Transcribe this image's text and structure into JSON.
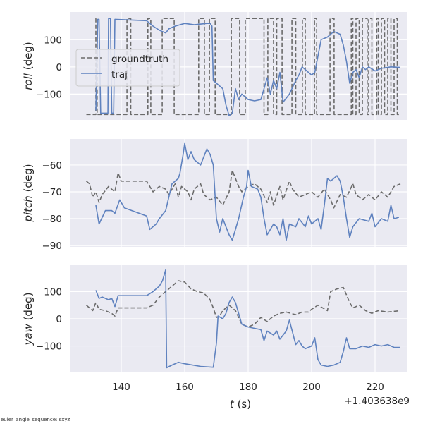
{
  "chart_data": {
    "type": "line",
    "footnote": "euler_angle_sequence: sxyz",
    "xlabel_var": "t",
    "xlabel_unit": " (s)",
    "x_offset_label": "+1.403638e9",
    "xlim": [
      124,
      230
    ],
    "xticks": [
      140,
      160,
      180,
      200,
      220
    ],
    "xtick_labels": [
      "140",
      "160",
      "180",
      "200",
      "220"
    ],
    "colors": {
      "groundtruth": "#6b6b6b",
      "traj": "#5f82bf",
      "background": "#eaeaf2",
      "grid": "#ffffff"
    },
    "legend": {
      "placement": "center-left of top panel",
      "entries": [
        "groundtruth",
        "traj"
      ]
    },
    "panels": [
      {
        "name": "roll",
        "ylabel_var": "roll",
        "ylabel_unit": " (deg)",
        "ylim": [
          -195,
          202
        ],
        "yticks": [
          100,
          0,
          -100
        ],
        "ytick_labels": [
          "100",
          "0",
          "−100"
        ],
        "series": [
          {
            "name": "groundtruth",
            "x": [
              129,
              132,
              132,
              132.4,
              132.4,
              141.8,
              141.8,
              143,
              143,
              148.4,
              148.4,
              149.3,
              149.3,
              152.9,
              152.9,
              156.7,
              156.7,
              164.4,
              164.4,
              166.2,
              166.2,
              167.8,
              167.8,
              169.6,
              169.6,
              174.7,
              174.7,
              177.3,
              177.3,
              179.1,
              179.1,
              185,
              185,
              186.2,
              186.2,
              188,
              188,
              189,
              189,
              190.7,
              190.7,
              193.8,
              193.8,
              195,
              195,
              197.1,
              197.1,
              198,
              198,
              200.9,
              200.9,
              201.6,
              201.6,
              205.8,
              205.8,
              207.1,
              207.1,
              212.5,
              212.5,
              213,
              213,
              214,
              214,
              215,
              215,
              216,
              216,
              217.5,
              217.5,
              218,
              218,
              219,
              219,
              220.5,
              220.5,
              221,
              221,
              222,
              222,
              223,
              223,
              224,
              224,
              225,
              225,
              226,
              226,
              227,
              227,
              227.5
            ],
            "y": [
              -175,
              -175,
              178,
              178,
              -175,
              -175,
              178,
              178,
              -175,
              -175,
              178,
              178,
              -175,
              -175,
              178,
              178,
              -175,
              -175,
              178,
              178,
              -175,
              -175,
              178,
              178,
              -175,
              -175,
              178,
              178,
              -175,
              -175,
              178,
              178,
              -175,
              -175,
              178,
              178,
              -175,
              -175,
              178,
              178,
              -175,
              -175,
              178,
              178,
              -175,
              -175,
              178,
              178,
              -175,
              -175,
              178,
              178,
              -175,
              -175,
              178,
              178,
              -175,
              -175,
              178,
              178,
              -175,
              -175,
              178,
              178,
              -175,
              -175,
              178,
              178,
              -175,
              -175,
              178,
              178,
              -175,
              -175,
              178,
              178,
              -175,
              -175,
              178,
              178,
              -175,
              -175,
              178,
              178,
              -175,
              -175,
              178,
              178,
              -175,
              -175
            ]
          },
          {
            "name": "traj",
            "x": [
              132,
              132.6,
              133,
              133.5,
              135,
              135.8,
              136,
              136.6,
              137,
              137.6,
              138,
              148,
              150,
              152,
              154,
              155,
              157,
              160,
              163,
              167,
              168,
              168.6,
              169,
              170,
              172,
              173,
              174,
              175,
              176,
              177,
              178,
              179,
              180,
              182,
              184,
              185,
              186,
              187,
              188,
              189,
              190,
              191,
              193,
              195,
              196,
              197,
              198,
              200,
              201,
              203,
              205,
              207,
              209,
              210,
              211,
              212,
              213,
              214,
              215,
              216,
              217,
              218,
              220,
              222,
              225,
              228
            ],
            "y": [
              -160,
              175,
              175,
              -170,
              -170,
              -170,
              178,
              178,
              -170,
              -170,
              175,
              170,
              150,
              135,
              125,
              140,
              150,
              160,
              155,
              160,
              160,
              150,
              -50,
              -60,
              -80,
              -140,
              -180,
              -170,
              -80,
              -120,
              -100,
              -110,
              -120,
              -125,
              -120,
              -80,
              -40,
              -100,
              -50,
              -80,
              -20,
              -130,
              -100,
              -50,
              -30,
              0,
              -10,
              -30,
              -20,
              100,
              110,
              130,
              120,
              80,
              20,
              -60,
              -20,
              -10,
              -40,
              0,
              -10,
              0,
              -15,
              -5,
              0,
              -2
            ]
          }
        ]
      },
      {
        "name": "pitch",
        "ylabel_var": "pitch",
        "ylabel_unit": " (deg)",
        "ylim": [
          -90.5,
          -50.3
        ],
        "yticks": [
          -60,
          -70,
          -80,
          -90
        ],
        "ytick_labels": [
          "−60",
          "−70",
          "−80",
          "−90"
        ],
        "series": [
          {
            "name": "groundtruth",
            "x": [
              129,
              130,
              131,
              132,
              133,
              134,
              136,
              138,
              139,
              140,
              148,
              149,
              150,
              152,
              154,
              155,
              157,
              158,
              159,
              161,
              162,
              163,
              165,
              166,
              168,
              170,
              172,
              174,
              175,
              177,
              178,
              180,
              182,
              184,
              186,
              187,
              188,
              190,
              191,
              193,
              194,
              196,
              198,
              200,
              202,
              204,
              206,
              207,
              209,
              211,
              213,
              214,
              216,
              218,
              220,
              222,
              224,
              226,
              228
            ],
            "y": [
              -66,
              -67,
              -72,
              -70,
              -74,
              -71,
              -68,
              -70,
              -63,
              -66,
              -66,
              -68,
              -70,
              -68,
              -69,
              -71,
              -67,
              -72,
              -68,
              -70,
              -73,
              -69,
              -67,
              -71,
              -73,
              -72,
              -75,
              -70,
              -62,
              -68,
              -70,
              -68,
              -67,
              -69,
              -74,
              -70,
              -75,
              -68,
              -73,
              -66,
              -69,
              -72,
              -71,
              -70,
              -72,
              -69,
              -73,
              -76,
              -71,
              -72,
              -67,
              -71,
              -73,
              -71,
              -73,
              -70,
              -72,
              -68,
              -67
            ]
          },
          {
            "name": "traj",
            "x": [
              132,
              133,
              135,
              137,
              138,
              139.5,
              141,
              148,
              149,
              151,
              152,
              154,
              155,
              156,
              158,
              158.5,
              159.5,
              160,
              161,
              162,
              163,
              165,
              167,
              168,
              169,
              170,
              171,
              172,
              174,
              175,
              177,
              178.5,
              179.5,
              180,
              181,
              183,
              184,
              185,
              186,
              188,
              189,
              190,
              191,
              192,
              193,
              195,
              196,
              198,
              199,
              200,
              202,
              203,
              204,
              205,
              206,
              208,
              209,
              210,
              211,
              212,
              213,
              215,
              218,
              219,
              220,
              222,
              224,
              225,
              226,
              227.5
            ],
            "y": [
              -75,
              -82,
              -77,
              -77,
              -78,
              -73,
              -76,
              -79,
              -84,
              -82,
              -80,
              -77,
              -72,
              -67,
              -65,
              -63,
              -56,
              -52,
              -58,
              -55,
              -58,
              -60,
              -54,
              -56,
              -60,
              -80,
              -85,
              -80,
              -86,
              -88,
              -80,
              -72,
              -68,
              -62,
              -68,
              -69,
              -72,
              -80,
              -86,
              -82,
              -83,
              -86,
              -80,
              -88,
              -82,
              -83,
              -80,
              -83,
              -79,
              -82,
              -80,
              -84,
              -75,
              -65,
              -66,
              -64,
              -66,
              -72,
              -80,
              -87,
              -83,
              -80,
              -81,
              -78,
              -83,
              -80,
              -81,
              -75,
              -80,
              -79.5
            ]
          }
        ]
      },
      {
        "name": "yaw",
        "ylabel_var": "yaw",
        "ylabel_unit": " (deg)",
        "ylim": [
          -197,
          197
        ],
        "yticks": [
          100,
          0,
          -100
        ],
        "ytick_labels": [
          "100",
          "0",
          "−100"
        ],
        "series": [
          {
            "name": "groundtruth",
            "x": [
              129,
              130,
              131,
              132,
              133,
              135,
              137,
              138,
              139,
              148,
              150,
              152,
              154,
              156,
              158,
              160,
              162,
              164,
              166,
              168,
              169,
              170,
              171,
              172,
              174,
              176,
              178,
              180,
              182,
              184,
              186,
              188,
              190,
              192,
              195,
              197,
              199,
              200,
              202,
              205,
              206,
              208,
              210,
              212,
              213,
              215,
              217,
              219,
              221,
              224,
              228
            ],
            "y": [
              50,
              40,
              30,
              60,
              35,
              30,
              20,
              10,
              40,
              40,
              50,
              80,
              100,
              120,
              140,
              135,
              110,
              100,
              95,
              70,
              40,
              5,
              10,
              30,
              50,
              30,
              -20,
              -30,
              -20,
              5,
              -10,
              10,
              20,
              25,
              15,
              25,
              25,
              35,
              50,
              30,
              100,
              110,
              115,
              60,
              40,
              50,
              30,
              20,
              30,
              25,
              30
            ]
          },
          {
            "name": "traj",
            "x": [
              132,
              133,
              134,
              136,
              137,
              138,
              139,
              148,
              150,
              152,
              153,
              154,
              154.3,
              156,
              158,
              160,
              165,
              169,
              170,
              170.5,
              172,
              173,
              174,
              175,
              176,
              177,
              178,
              180,
              182,
              184,
              185,
              186,
              188,
              189,
              190,
              192,
              193,
              194,
              195,
              196,
              197,
              198,
              200,
              201,
              202,
              203,
              205,
              207,
              209,
              210,
              211,
              212,
              214,
              216,
              218,
              220,
              222,
              224,
              226,
              228
            ],
            "y": [
              105,
              75,
              80,
              70,
              75,
              45,
              85,
              85,
              100,
              120,
              140,
              180,
              -180,
              -170,
              -160,
              -165,
              -175,
              -178,
              -90,
              10,
              0,
              20,
              60,
              80,
              60,
              20,
              -20,
              -30,
              -35,
              -40,
              -80,
              -45,
              -60,
              -45,
              -75,
              -45,
              -5,
              -50,
              -95,
              -80,
              -100,
              -110,
              -100,
              -70,
              -150,
              -170,
              -175,
              -170,
              -160,
              -120,
              -70,
              -110,
              -110,
              -100,
              -105,
              -95,
              -100,
              -95,
              -105,
              -105
            ]
          }
        ]
      }
    ]
  }
}
